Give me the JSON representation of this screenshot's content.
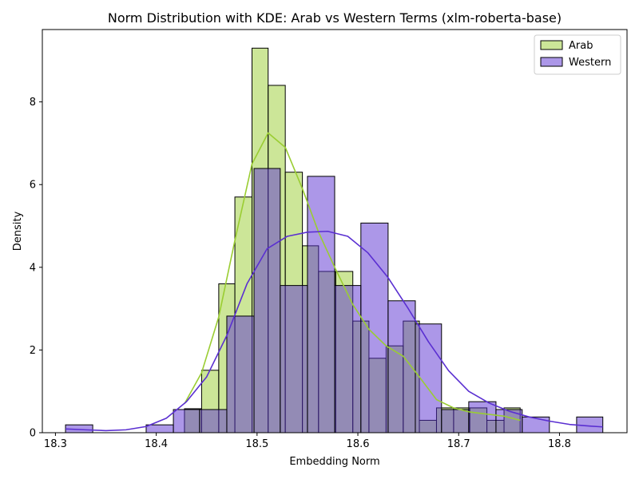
{
  "chart_data": {
    "type": "histogram",
    "title": "Norm Distribution with KDE: Arab vs Western Terms (xlm-roberta-base)",
    "xlabel": "Embedding Norm",
    "ylabel": "Density",
    "xlim": [
      18.287,
      18.867
    ],
    "ylim": [
      0,
      9.75
    ],
    "x_ticks": [
      18.3,
      18.4,
      18.5,
      18.6,
      18.7,
      18.8
    ],
    "y_ticks": [
      0,
      2,
      4,
      6,
      8
    ],
    "grid": false,
    "legend_position": "top-right",
    "series": [
      {
        "name": "Arab",
        "color": "#9acd32",
        "bins": [
          {
            "x0": 18.428,
            "x1": 18.445,
            "density": 0.58
          },
          {
            "x0": 18.445,
            "x1": 18.462,
            "density": 1.51
          },
          {
            "x0": 18.462,
            "x1": 18.478,
            "density": 3.6
          },
          {
            "x0": 18.478,
            "x1": 18.495,
            "density": 5.7
          },
          {
            "x0": 18.495,
            "x1": 18.511,
            "density": 9.3
          },
          {
            "x0": 18.511,
            "x1": 18.528,
            "density": 8.4
          },
          {
            "x0": 18.528,
            "x1": 18.545,
            "density": 6.3
          },
          {
            "x0": 18.545,
            "x1": 18.561,
            "density": 4.52
          },
          {
            "x0": 18.561,
            "x1": 18.578,
            "density": 3.9
          },
          {
            "x0": 18.578,
            "x1": 18.595,
            "density": 3.9
          },
          {
            "x0": 18.595,
            "x1": 18.611,
            "density": 2.7
          },
          {
            "x0": 18.611,
            "x1": 18.628,
            "density": 1.8
          },
          {
            "x0": 18.628,
            "x1": 18.645,
            "density": 2.1
          },
          {
            "x0": 18.645,
            "x1": 18.661,
            "density": 2.7
          },
          {
            "x0": 18.661,
            "x1": 18.678,
            "density": 0.3
          },
          {
            "x0": 18.678,
            "x1": 18.695,
            "density": 0.6
          },
          {
            "x0": 18.695,
            "x1": 18.711,
            "density": 0.6
          },
          {
            "x0": 18.711,
            "x1": 18.728,
            "density": 0.6
          },
          {
            "x0": 18.728,
            "x1": 18.745,
            "density": 0.3
          },
          {
            "x0": 18.745,
            "x1": 18.761,
            "density": 0.6
          }
        ],
        "kde": [
          [
            18.428,
            0.7
          ],
          [
            18.445,
            1.45
          ],
          [
            18.462,
            2.8
          ],
          [
            18.478,
            4.65
          ],
          [
            18.495,
            6.5
          ],
          [
            18.511,
            7.25
          ],
          [
            18.528,
            6.9
          ],
          [
            18.545,
            5.9
          ],
          [
            18.561,
            4.85
          ],
          [
            18.578,
            3.95
          ],
          [
            18.595,
            3.1
          ],
          [
            18.611,
            2.5
          ],
          [
            18.628,
            2.1
          ],
          [
            18.645,
            1.85
          ],
          [
            18.661,
            1.35
          ],
          [
            18.678,
            0.8
          ],
          [
            18.695,
            0.6
          ],
          [
            18.711,
            0.5
          ],
          [
            18.728,
            0.45
          ],
          [
            18.745,
            0.4
          ],
          [
            18.761,
            0.3
          ]
        ]
      },
      {
        "name": "Western",
        "color": "#5a2fd1",
        "bins": [
          {
            "x0": 18.31,
            "x1": 18.337,
            "density": 0.19
          },
          {
            "x0": 18.39,
            "x1": 18.417,
            "density": 0.19
          },
          {
            "x0": 18.417,
            "x1": 18.443,
            "density": 0.56
          },
          {
            "x0": 18.443,
            "x1": 18.47,
            "density": 0.56
          },
          {
            "x0": 18.47,
            "x1": 18.497,
            "density": 2.82
          },
          {
            "x0": 18.497,
            "x1": 18.523,
            "density": 6.39
          },
          {
            "x0": 18.523,
            "x1": 18.55,
            "density": 3.56
          },
          {
            "x0": 18.55,
            "x1": 18.577,
            "density": 6.2
          },
          {
            "x0": 18.577,
            "x1": 18.603,
            "density": 3.56
          },
          {
            "x0": 18.603,
            "x1": 18.63,
            "density": 5.07
          },
          {
            "x0": 18.63,
            "x1": 18.657,
            "density": 3.19
          },
          {
            "x0": 18.657,
            "x1": 18.683,
            "density": 2.63
          },
          {
            "x0": 18.683,
            "x1": 18.71,
            "density": 0.56
          },
          {
            "x0": 18.71,
            "x1": 18.737,
            "density": 0.75
          },
          {
            "x0": 18.737,
            "x1": 18.763,
            "density": 0.56
          },
          {
            "x0": 18.763,
            "x1": 18.79,
            "density": 0.38
          },
          {
            "x0": 18.817,
            "x1": 18.843,
            "density": 0.38
          }
        ],
        "kde": [
          [
            18.31,
            0.09
          ],
          [
            18.33,
            0.07
          ],
          [
            18.35,
            0.05
          ],
          [
            18.37,
            0.07
          ],
          [
            18.39,
            0.15
          ],
          [
            18.41,
            0.35
          ],
          [
            18.43,
            0.75
          ],
          [
            18.45,
            1.35
          ],
          [
            18.47,
            2.35
          ],
          [
            18.49,
            3.6
          ],
          [
            18.51,
            4.45
          ],
          [
            18.53,
            4.75
          ],
          [
            18.55,
            4.85
          ],
          [
            18.57,
            4.87
          ],
          [
            18.59,
            4.75
          ],
          [
            18.61,
            4.35
          ],
          [
            18.63,
            3.75
          ],
          [
            18.65,
            3.0
          ],
          [
            18.67,
            2.2
          ],
          [
            18.69,
            1.5
          ],
          [
            18.71,
            1.0
          ],
          [
            18.73,
            0.72
          ],
          [
            18.75,
            0.52
          ],
          [
            18.77,
            0.38
          ],
          [
            18.79,
            0.28
          ],
          [
            18.81,
            0.2
          ],
          [
            18.83,
            0.16
          ],
          [
            18.843,
            0.14
          ]
        ]
      }
    ]
  }
}
